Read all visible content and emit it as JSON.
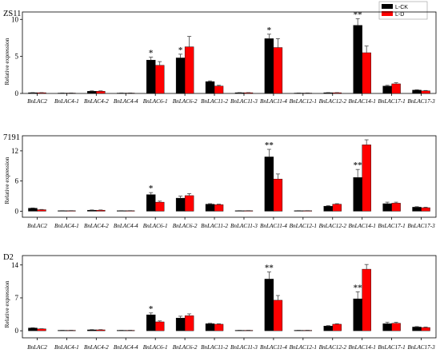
{
  "legend": [
    {
      "label": "L-CK",
      "color": "#000000"
    },
    {
      "label": "L-D",
      "color": "#ff0000"
    }
  ],
  "chart_data": [
    {
      "type": "bar",
      "title": "ZS11",
      "ylabel": "Relative expression",
      "ylim": [
        0,
        11
      ],
      "yticks": [
        0,
        5,
        10
      ],
      "categories": [
        "BnLAC2",
        "BnLAC4-1",
        "BnLAC4-2",
        "BnLAC4-4",
        "BnLAC6-1",
        "BnLAC6-2",
        "BnLAC11-2",
        "BnLAC11-3",
        "BnLAC11-4",
        "BnLAC12-1",
        "BnLAC12-2",
        "BnLAC14-1",
        "BnLAC17-1",
        "BnLAC17-3"
      ],
      "series": [
        {
          "name": "L-CK",
          "color": "#000000",
          "values": [
            0.1,
            0.05,
            0.3,
            0.05,
            4.5,
            4.8,
            1.6,
            0.1,
            7.4,
            0.05,
            0.1,
            9.2,
            1.0,
            0.45
          ],
          "errors": [
            0.02,
            0.02,
            0.05,
            0.02,
            0.4,
            0.5,
            0.1,
            0.02,
            0.6,
            0.02,
            0.02,
            0.9,
            0.1,
            0.05
          ]
        },
        {
          "name": "L-D",
          "color": "#ff0000",
          "values": [
            0.1,
            0.05,
            0.3,
            0.05,
            3.8,
            6.3,
            1.0,
            0.1,
            6.2,
            0.05,
            0.1,
            5.5,
            1.3,
            0.35
          ],
          "errors": [
            0.02,
            0.02,
            0.05,
            0.02,
            0.5,
            1.4,
            0.1,
            0.02,
            1.2,
            0.02,
            0.02,
            0.9,
            0.15,
            0.05
          ]
        }
      ],
      "significance": [
        {
          "category": "BnLAC6-1",
          "label": "*"
        },
        {
          "category": "BnLAC6-2",
          "label": "*"
        },
        {
          "category": "BnLAC11-4",
          "label": "*"
        },
        {
          "category": "BnLAC14-1",
          "label": "**"
        }
      ]
    },
    {
      "type": "bar",
      "title": "7191",
      "ylabel": "Relative expression",
      "ylim": [
        -1.2,
        15
      ],
      "yticks": [
        0,
        6,
        12
      ],
      "categories": [
        "BnLAC2",
        "BnLAC4-1",
        "BnLAC4-2",
        "BnLAC4-4",
        "BnLAC6-1",
        "BnLAC6-2",
        "BnLAC11-2",
        "BnLAC11-3",
        "BnLAC11-4",
        "BnLAC12-1",
        "BnLAC12-2",
        "BnLAC14-1",
        "BnLAC17-1",
        "BnLAC17-3"
      ],
      "series": [
        {
          "name": "L-CK",
          "color": "#000000",
          "values": [
            0.6,
            0.1,
            0.2,
            0.1,
            3.3,
            2.6,
            1.4,
            0.1,
            10.8,
            0.1,
            1.0,
            6.7,
            1.5,
            0.8
          ],
          "errors": [
            0.05,
            0.02,
            0.05,
            0.02,
            0.4,
            0.4,
            0.1,
            0.02,
            1.5,
            0.02,
            0.1,
            1.6,
            0.3,
            0.1
          ]
        },
        {
          "name": "L-D",
          "color": "#ff0000",
          "values": [
            0.3,
            0.1,
            0.2,
            0.1,
            1.8,
            3.1,
            1.3,
            0.1,
            6.4,
            0.1,
            1.4,
            13.2,
            1.6,
            0.7
          ],
          "errors": [
            0.05,
            0.02,
            0.05,
            0.02,
            0.2,
            0.4,
            0.1,
            0.02,
            1.0,
            0.02,
            0.1,
            1.0,
            0.2,
            0.1
          ]
        }
      ],
      "significance": [
        {
          "category": "BnLAC6-1",
          "label": "*"
        },
        {
          "category": "BnLAC11-4",
          "label": "**"
        },
        {
          "category": "BnLAC14-1",
          "label": "**"
        }
      ]
    },
    {
      "type": "bar",
      "title": "D2",
      "ylabel": "Relative expression",
      "ylim": [
        -1.5,
        16
      ],
      "yticks": [
        0,
        7,
        14
      ],
      "categories": [
        "BnLAC2",
        "BnLAC4-1",
        "BnLAC4-2",
        "BnLAC4-4",
        "BnLAC6-1",
        "BnLAC6-2",
        "BnLAC11-2",
        "BnLAC11-3",
        "BnLAC11-4",
        "BnLAC12-1",
        "BnLAC12-2",
        "BnLAC14-1",
        "BnLAC17-1",
        "BnLAC17-3"
      ],
      "series": [
        {
          "name": "L-CK",
          "color": "#000000",
          "values": [
            0.6,
            0.1,
            0.2,
            0.1,
            3.4,
            2.7,
            1.5,
            0.1,
            11.0,
            0.1,
            1.0,
            6.8,
            1.5,
            0.8
          ],
          "errors": [
            0.05,
            0.02,
            0.05,
            0.02,
            0.4,
            0.4,
            0.1,
            0.02,
            1.5,
            0.02,
            0.1,
            1.5,
            0.3,
            0.1
          ]
        },
        {
          "name": "L-D",
          "color": "#ff0000",
          "values": [
            0.4,
            0.1,
            0.2,
            0.1,
            1.9,
            3.2,
            1.4,
            0.1,
            6.5,
            0.1,
            1.4,
            13.1,
            1.6,
            0.7
          ],
          "errors": [
            0.05,
            0.02,
            0.05,
            0.02,
            0.2,
            0.4,
            0.1,
            0.02,
            1.0,
            0.02,
            0.1,
            1.0,
            0.2,
            0.1
          ]
        }
      ],
      "significance": [
        {
          "category": "BnLAC6-1",
          "label": "*"
        },
        {
          "category": "BnLAC11-4",
          "label": "**"
        },
        {
          "category": "BnLAC14-1",
          "label": "**"
        }
      ]
    }
  ]
}
